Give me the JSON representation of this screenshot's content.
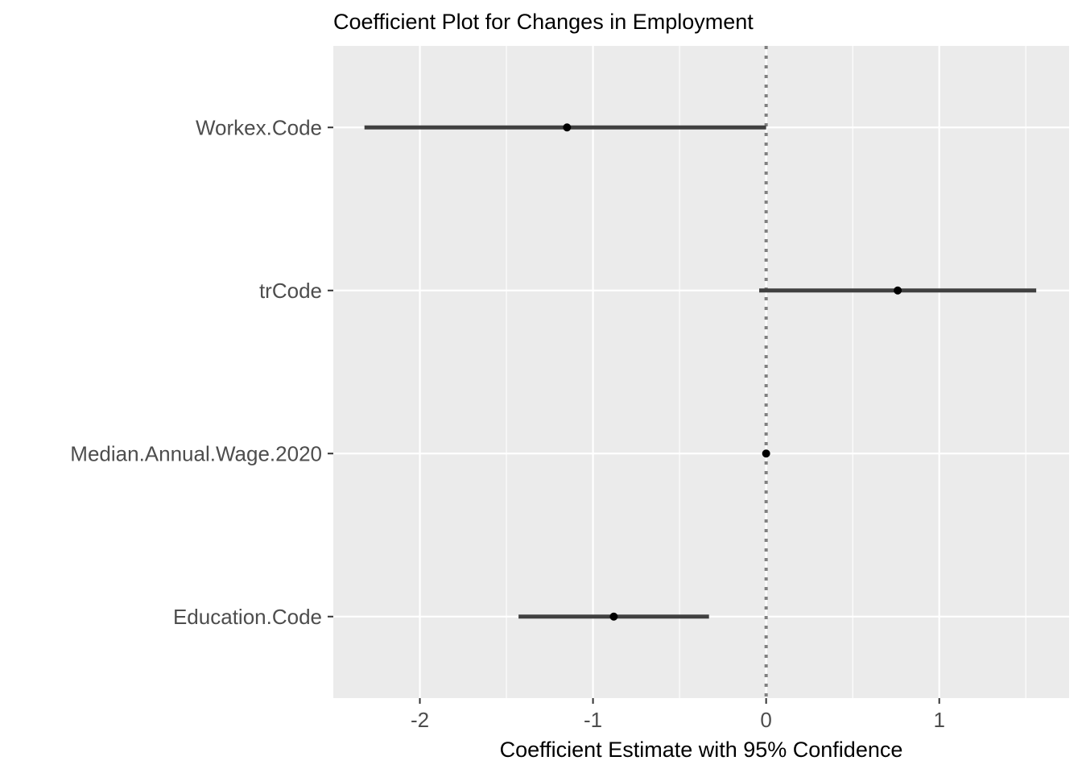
{
  "chart_data": {
    "type": "coefficient-plot",
    "title": "Coefficient Plot for Changes in Employment",
    "xlabel": "Coefficient Estimate with 95% Confidence",
    "ylabel": "",
    "xlim": [
      -2.5,
      1.75
    ],
    "xticks": [
      -2,
      -1,
      0,
      1
    ],
    "xtick_labels": [
      "-2",
      "-1",
      "0",
      "1"
    ],
    "reference_line": 0,
    "grid": true,
    "panel_background": "#ebebeb",
    "grid_color": "#ffffff",
    "point_color": "#000000",
    "interval_color": "#404040",
    "reference_line_color": "#808080",
    "categories": [
      "Workex.Code",
      "trCode",
      "Median.Annual.Wage.2020",
      "Education.Code"
    ],
    "estimates": [
      -1.15,
      0.76,
      0.0,
      -0.88
    ],
    "lower": [
      -2.32,
      -0.04,
      -0.01,
      -1.43
    ],
    "upper": [
      0.0,
      1.56,
      0.01,
      -0.33
    ]
  }
}
